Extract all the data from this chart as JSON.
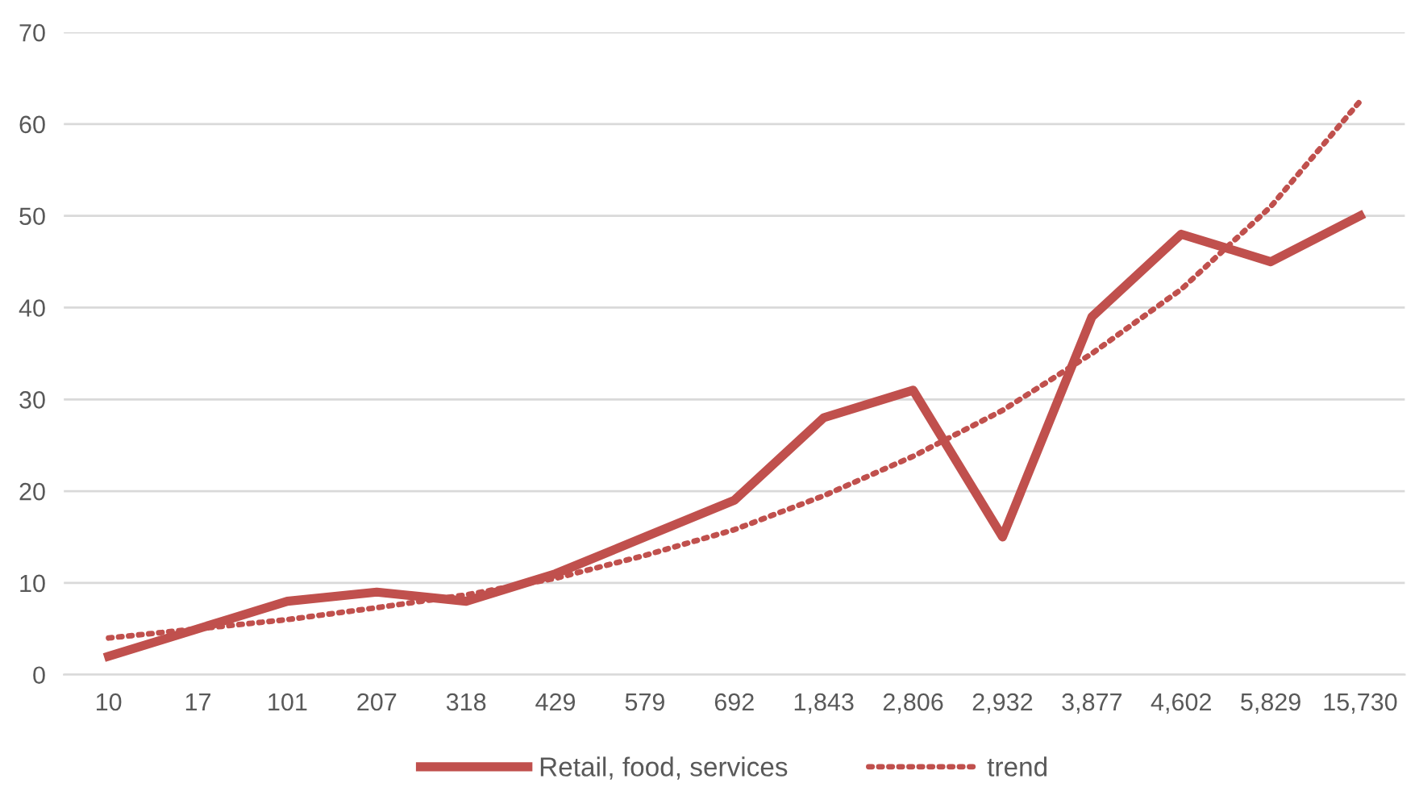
{
  "chart_data": {
    "type": "line",
    "categories": [
      "10",
      "17",
      "101",
      "207",
      "318",
      "429",
      "579",
      "692",
      "1,843",
      "2,806",
      "2,932",
      "3,877",
      "4,602",
      "5,829",
      "15,730"
    ],
    "series": [
      {
        "name": "Retail, food, services",
        "color": "#c0504d",
        "line_style": "solid",
        "values": [
          2,
          5,
          8,
          9,
          8,
          11,
          15,
          19,
          28,
          31,
          15,
          39,
          48,
          45,
          50
        ]
      },
      {
        "name": "trend",
        "color": "#c0504d",
        "line_style": "dotted",
        "values": [
          4,
          5,
          6,
          7.3,
          8.7,
          10.5,
          13,
          15.8,
          19.5,
          23.8,
          28.8,
          35,
          42,
          51,
          62.5
        ]
      }
    ],
    "ylim": [
      0,
      70
    ],
    "yticks": [
      0,
      10,
      20,
      30,
      40,
      50,
      60,
      70
    ],
    "grid": "y",
    "legend": "bottom",
    "marker": "none"
  }
}
